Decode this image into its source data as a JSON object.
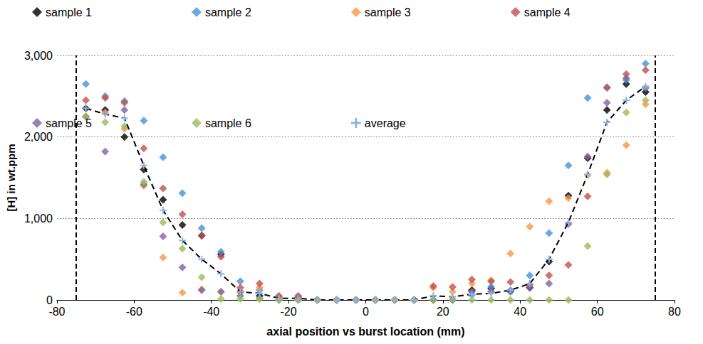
{
  "chart_data": {
    "type": "scatter",
    "x_label": "axial position vs burst location (mm)",
    "y_label": "[H] in wt.ppm",
    "x": [
      -72.5,
      -67.5,
      -62.5,
      -57.5,
      -52.5,
      -47.5,
      -42.5,
      -37.5,
      -32.5,
      -27.5,
      -22.5,
      -17.5,
      -12.5,
      -7.5,
      -2.5,
      2.5,
      7.5,
      12.5,
      17.5,
      22.5,
      27.5,
      32.5,
      37.5,
      42.5,
      47.5,
      52.5,
      57.5,
      62.5,
      67.5,
      72.5
    ],
    "series": [
      {
        "name": "sample 1",
        "color": "#000000",
        "marker": "diamond",
        "values": [
          2350,
          2330,
          2000,
          1600,
          1230,
          920,
          790,
          560,
          100,
          50,
          30,
          30,
          0,
          0,
          0,
          0,
          0,
          0,
          0,
          0,
          120,
          140,
          110,
          150,
          470,
          1280,
          1740,
          2330,
          2650,
          2550
        ]
      },
      {
        "name": "sample 2",
        "color": "#4a90d9",
        "marker": "diamond",
        "values": [
          2650,
          2500,
          2440,
          2200,
          1750,
          1310,
          880,
          590,
          230,
          120,
          30,
          30,
          0,
          0,
          0,
          0,
          0,
          0,
          0,
          0,
          60,
          160,
          120,
          300,
          820,
          1650,
          2480,
          2600,
          2700,
          2900
        ]
      },
      {
        "name": "sample 3",
        "color": "#f79646",
        "marker": "diamond",
        "values": [
          2250,
          2300,
          2100,
          1400,
          520,
          90,
          130,
          100,
          100,
          150,
          30,
          20,
          0,
          0,
          0,
          0,
          0,
          0,
          150,
          100,
          200,
          240,
          570,
          900,
          1210,
          1250,
          1530,
          1560,
          1900,
          2400
        ]
      },
      {
        "name": "sample 4",
        "color": "#c0504d",
        "marker": "diamond",
        "values": [
          2450,
          2480,
          2420,
          1860,
          1370,
          1050,
          790,
          530,
          150,
          200,
          50,
          50,
          0,
          0,
          0,
          0,
          0,
          0,
          170,
          160,
          250,
          230,
          220,
          180,
          300,
          430,
          1270,
          2610,
          2770,
          2820
        ]
      },
      {
        "name": "sample 5",
        "color": "#8064a2",
        "marker": "diamond",
        "values": [
          2250,
          1820,
          2330,
          1420,
          780,
          400,
          120,
          100,
          50,
          20,
          0,
          0,
          0,
          0,
          0,
          0,
          0,
          0,
          0,
          0,
          100,
          100,
          100,
          150,
          200,
          930,
          1760,
          2420,
          2720,
          2600
        ]
      },
      {
        "name": "sample 6",
        "color": "#9bbb59",
        "marker": "diamond",
        "values": [
          2250,
          2180,
          2130,
          1450,
          950,
          630,
          280,
          10,
          10,
          10,
          0,
          0,
          0,
          0,
          0,
          0,
          0,
          0,
          0,
          0,
          0,
          0,
          0,
          0,
          0,
          0,
          660,
          1540,
          2300,
          2450
        ]
      },
      {
        "name": "average",
        "color": "#000000",
        "type": "line",
        "marker": "plus",
        "line_style": "dashed",
        "values": [
          2350,
          2280,
          2230,
          1650,
          1100,
          730,
          500,
          320,
          100,
          80,
          20,
          20,
          0,
          0,
          0,
          0,
          0,
          0,
          50,
          40,
          70,
          80,
          120,
          200,
          500,
          950,
          1540,
          2180,
          2450,
          2620
        ]
      }
    ],
    "vlines": [
      -75,
      75
    ],
    "xlim": [
      -80,
      80
    ],
    "xticks": [
      -80,
      -60,
      -40,
      -20,
      0,
      20,
      40,
      60,
      80
    ],
    "ylim": [
      0,
      3000
    ],
    "yticks": [
      0,
      1000,
      2000,
      3000
    ],
    "grid": true,
    "legend": "top"
  }
}
